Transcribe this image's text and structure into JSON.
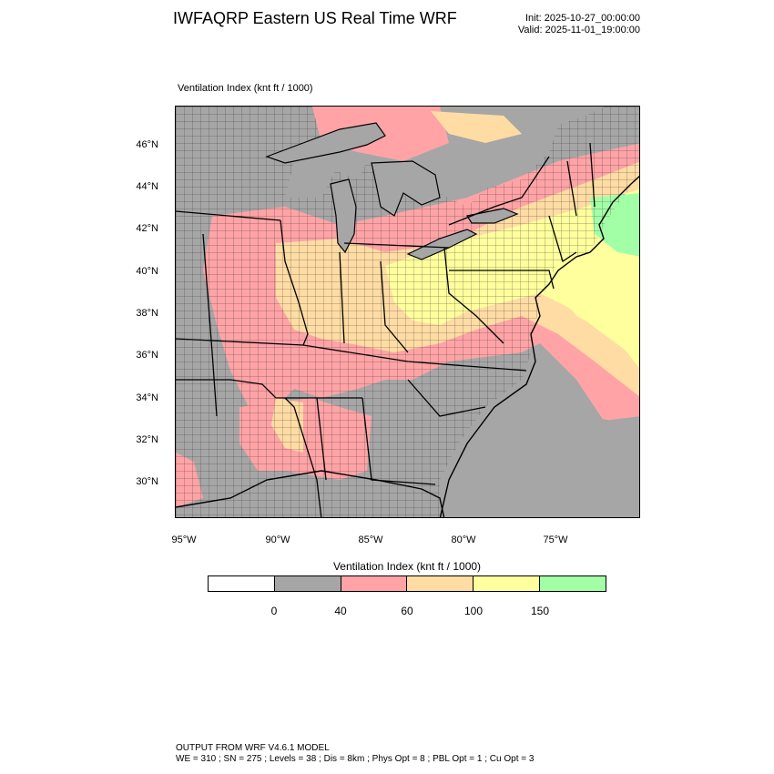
{
  "header": {
    "title": "IWFAQRP Eastern US Real Time WRF",
    "init": "Init: 2025-10-27_00:00:00",
    "valid": "Valid: 2025-11-01_19:00:00"
  },
  "field": {
    "label": "Ventilation Index   (knt ft / 1000)"
  },
  "map": {
    "lat_labels": [
      "46°N",
      "44°N",
      "42°N",
      "40°N",
      "38°N",
      "36°N",
      "34°N",
      "32°N",
      "30°N"
    ],
    "lon_labels": [
      "95°W",
      "90°W",
      "85°W",
      "80°W",
      "75°W"
    ]
  },
  "colorbar": {
    "title": "Ventilation Index  (knt ft / 1000)",
    "colors": [
      "#ffffff",
      "#a6a6a6",
      "#ffa3a6",
      "#ffdca3",
      "#ffff9d",
      "#a3ffa6"
    ],
    "ticks": [
      "0",
      "40",
      "60",
      "100",
      "150"
    ]
  },
  "footer": {
    "line1": "OUTPUT FROM WRF V4.6.1 MODEL",
    "line2": "WE = 310 ; SN = 275 ; Levels = 38 ; Dis = 8km ; Phys Opt = 8 ; PBL Opt = 1 ; Cu Opt = 3"
  }
}
